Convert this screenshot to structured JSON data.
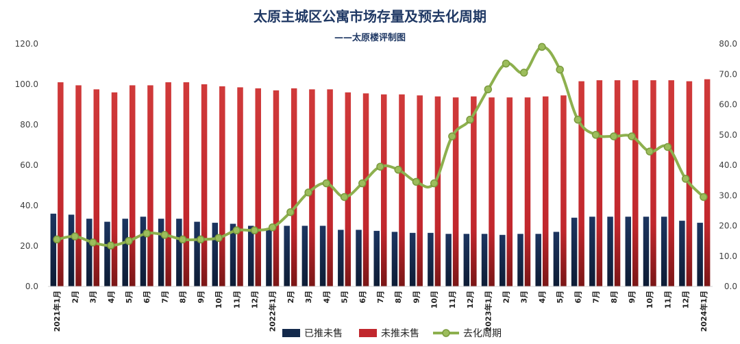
{
  "chart_data": {
    "type": "bar",
    "title": "太原主城区公寓市场存量及预去化周期",
    "subtitle": "——太原楼评制图",
    "categories": [
      "2021年1月",
      "2月",
      "3月",
      "4月",
      "5月",
      "6月",
      "7月",
      "8月",
      "9月",
      "10月",
      "11月",
      "12月",
      "2022年1月",
      "2月",
      "3月",
      "4月",
      "5月",
      "6月",
      "7月",
      "8月",
      "9月",
      "10月",
      "11月",
      "12月",
      "2023年1月",
      "2月",
      "3月",
      "4月",
      "5月",
      "6月",
      "7月",
      "8月",
      "9月",
      "10月",
      "11月",
      "12月",
      "2024年1月"
    ],
    "left_axis": {
      "ylim": [
        0,
        120
      ],
      "ticks": [
        "0.0",
        "20.0",
        "40.0",
        "60.0",
        "80.0",
        "100.0",
        "120.0"
      ]
    },
    "right_axis": {
      "ylim": [
        0,
        80
      ],
      "ticks": [
        "0.0",
        "10.0",
        "20.0",
        "30.0",
        "40.0",
        "50.0",
        "60.0",
        "70.0",
        "80.0"
      ]
    },
    "series": [
      {
        "name": "已推未售",
        "type": "bar",
        "axis": "left",
        "color": "#13294b",
        "values": [
          36,
          35.5,
          33.5,
          32,
          33.5,
          34.5,
          33.5,
          33.5,
          32,
          31.5,
          31,
          30,
          28,
          30,
          30,
          30,
          28,
          28,
          27.5,
          27,
          26.5,
          26.5,
          26,
          26,
          26,
          25.5,
          26,
          26,
          27,
          34,
          34.5,
          34.5,
          34.5,
          34.5,
          34.5,
          32.5,
          31.5
        ]
      },
      {
        "name": "未推未售",
        "type": "bar",
        "axis": "left",
        "color": "#c1272d",
        "values": [
          101,
          99.5,
          97.5,
          96,
          99.5,
          99.5,
          101,
          101,
          100,
          99,
          98.5,
          98,
          97,
          98,
          97.5,
          97.5,
          96,
          95.5,
          95,
          95,
          94.5,
          94,
          93.5,
          94,
          93.5,
          93.5,
          93.5,
          94,
          94.5,
          101.5,
          102,
          102,
          102,
          102,
          102,
          101.5,
          102.5
        ]
      },
      {
        "name": "去化周期",
        "type": "line",
        "axis": "right",
        "color": "#8db04e",
        "values": [
          15.5,
          16.5,
          14.5,
          13.5,
          15,
          17.5,
          17,
          15.5,
          15.5,
          16,
          18.5,
          18.5,
          19.5,
          24.5,
          31,
          34,
          29.5,
          34,
          39.5,
          38.5,
          34.5,
          34,
          49.5,
          55,
          65,
          73.5,
          70.5,
          79,
          71.5,
          55,
          50,
          49.5,
          49.5,
          44.5,
          46,
          35.5,
          29.5
        ]
      }
    ],
    "legend": {
      "position": "bottom",
      "entries": [
        "已推未售",
        "未推未售",
        "去化周期"
      ]
    },
    "grid": false
  }
}
